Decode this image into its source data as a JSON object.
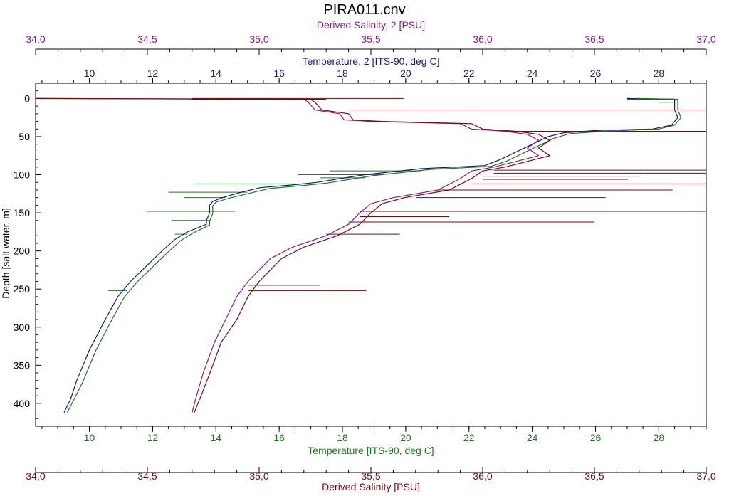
{
  "chart_data": {
    "type": "line",
    "title": "PIRA011.cnv",
    "colors": {
      "salinity2": "#8b1a8b",
      "temperature2": "#1a1a7a",
      "temperature": "#1a7a1a",
      "salinity": "#7a0a0a",
      "axis": "#000000"
    },
    "axes": {
      "top_salinity2": {
        "label": "Derived Salinity, 2 [PSU]",
        "range": [
          34.0,
          37.0
        ],
        "ticks": [
          "34,0",
          "34,5",
          "35,0",
          "35,5",
          "36,0",
          "36,5",
          "37,0"
        ],
        "tick_values": [
          34.0,
          34.5,
          35.0,
          35.5,
          36.0,
          36.5,
          37.0
        ]
      },
      "top_temperature2": {
        "label": "Temperature, 2 [ITS-90, deg C]",
        "range": [
          8.3,
          29.5
        ],
        "ticks": [
          "10",
          "12",
          "14",
          "16",
          "18",
          "20",
          "22",
          "24",
          "26",
          "28"
        ],
        "tick_values": [
          10,
          12,
          14,
          16,
          18,
          20,
          22,
          24,
          26,
          28
        ]
      },
      "left_depth": {
        "label": "Depth [salt water, m]",
        "range": [
          -20,
          430
        ],
        "ticks": [
          "0",
          "50",
          "100",
          "150",
          "200",
          "250",
          "300",
          "350",
          "400"
        ],
        "tick_values": [
          0,
          50,
          100,
          150,
          200,
          250,
          300,
          350,
          400
        ]
      },
      "bottom_temperature": {
        "label": "Temperature [ITS-90, deg C]",
        "range": [
          8.3,
          29.5
        ],
        "ticks": [
          "10",
          "12",
          "14",
          "16",
          "18",
          "20",
          "22",
          "24",
          "26",
          "28"
        ],
        "tick_values": [
          10,
          12,
          14,
          16,
          18,
          20,
          22,
          24,
          26,
          28
        ]
      },
      "bottom_salinity": {
        "label": "Derived Salinity [PSU]",
        "range": [
          34.0,
          37.0
        ],
        "ticks": [
          "34,0",
          "34,5",
          "35,0",
          "35,5",
          "36,0",
          "36,5",
          "37,0"
        ],
        "tick_values": [
          34.0,
          34.5,
          35.0,
          35.5,
          36.0,
          36.5,
          37.0
        ]
      }
    },
    "series": [
      {
        "name": "Temperature, 2 [ITS-90, deg C]",
        "key": "temperature2",
        "axis": "temp",
        "points": [
          [
            27,
            0
          ],
          [
            28.5,
            1
          ],
          [
            28.5,
            5
          ],
          [
            28.5,
            15
          ],
          [
            28.6,
            25
          ],
          [
            28.4,
            35
          ],
          [
            27.8,
            40
          ],
          [
            26,
            42
          ],
          [
            25,
            45
          ],
          [
            24.5,
            50
          ],
          [
            24,
            60
          ],
          [
            23,
            80
          ],
          [
            22.5,
            88
          ],
          [
            20.5,
            92
          ],
          [
            18.7,
            100
          ],
          [
            17.2,
            110
          ],
          [
            16.5,
            113
          ],
          [
            15.4,
            117
          ],
          [
            14.8,
            123
          ],
          [
            14.2,
            130
          ],
          [
            13.9,
            135
          ],
          [
            13.8,
            140
          ],
          [
            13.8,
            150
          ],
          [
            13.7,
            160
          ],
          [
            13.7,
            165
          ],
          [
            13.1,
            175
          ],
          [
            12.7,
            185
          ],
          [
            12.3,
            200
          ],
          [
            11.8,
            220
          ],
          [
            11.3,
            240
          ],
          [
            10.9,
            260
          ],
          [
            10.5,
            290
          ],
          [
            10.0,
            330
          ],
          [
            9.6,
            370
          ],
          [
            9.4,
            395
          ],
          [
            9.2,
            412
          ]
        ]
      },
      {
        "name": "Temperature [ITS-90, deg C]",
        "key": "temperature",
        "axis": "temp",
        "points": [
          [
            27.3,
            0
          ],
          [
            28.6,
            1
          ],
          [
            28.6,
            5
          ],
          [
            28.6,
            15
          ],
          [
            28.7,
            25
          ],
          [
            28.5,
            35
          ],
          [
            28.0,
            40
          ],
          [
            26.3,
            43
          ],
          [
            25.2,
            46
          ],
          [
            24.7,
            52
          ],
          [
            24.2,
            62
          ],
          [
            23.2,
            82
          ],
          [
            22.7,
            89
          ],
          [
            20.8,
            93
          ],
          [
            19.0,
            101
          ],
          [
            17.5,
            111
          ],
          [
            16.8,
            114
          ],
          [
            15.7,
            118
          ],
          [
            15.1,
            124
          ],
          [
            14.4,
            131
          ],
          [
            14.0,
            136
          ],
          [
            13.9,
            141
          ],
          [
            13.9,
            151
          ],
          [
            13.8,
            161
          ],
          [
            13.8,
            166
          ],
          [
            13.3,
            176
          ],
          [
            12.9,
            186
          ],
          [
            12.5,
            201
          ],
          [
            12.0,
            221
          ],
          [
            11.5,
            241
          ],
          [
            11.1,
            261
          ],
          [
            10.7,
            291
          ],
          [
            10.2,
            331
          ],
          [
            9.8,
            371
          ],
          [
            9.5,
            396
          ],
          [
            9.3,
            412
          ]
        ]
      },
      {
        "name": "Derived Salinity, 2 [PSU]",
        "key": "salinity2",
        "axis": "sal",
        "points": [
          [
            34.0,
            0
          ],
          [
            35.2,
            1
          ],
          [
            35.22,
            5
          ],
          [
            35.25,
            15
          ],
          [
            35.36,
            20
          ],
          [
            35.38,
            28
          ],
          [
            35.5,
            30
          ],
          [
            35.9,
            33
          ],
          [
            35.95,
            40
          ],
          [
            36.1,
            43
          ],
          [
            36.2,
            47
          ],
          [
            36.25,
            55
          ],
          [
            36.2,
            65
          ],
          [
            36.25,
            75
          ],
          [
            36.05,
            90
          ],
          [
            35.95,
            95
          ],
          [
            35.9,
            105
          ],
          [
            35.8,
            120
          ],
          [
            35.6,
            130
          ],
          [
            35.5,
            138
          ],
          [
            35.45,
            150
          ],
          [
            35.4,
            165
          ],
          [
            35.3,
            180
          ],
          [
            35.15,
            195
          ],
          [
            35.05,
            210
          ],
          [
            34.95,
            240
          ],
          [
            34.9,
            260
          ],
          [
            34.85,
            290
          ],
          [
            34.8,
            320
          ],
          [
            34.75,
            360
          ],
          [
            34.72,
            390
          ],
          [
            34.7,
            412
          ]
        ]
      },
      {
        "name": "Derived Salinity [PSU]",
        "key": "salinity",
        "axis": "sal",
        "points": [
          [
            34.0,
            0
          ],
          [
            35.23,
            1
          ],
          [
            35.25,
            5
          ],
          [
            35.28,
            15
          ],
          [
            35.4,
            20
          ],
          [
            35.42,
            28
          ],
          [
            35.55,
            30
          ],
          [
            35.95,
            33
          ],
          [
            36.0,
            40
          ],
          [
            36.15,
            43
          ],
          [
            36.25,
            47
          ],
          [
            36.3,
            55
          ],
          [
            36.25,
            65
          ],
          [
            36.3,
            75
          ],
          [
            36.1,
            90
          ],
          [
            36.0,
            95
          ],
          [
            35.95,
            105
          ],
          [
            35.85,
            120
          ],
          [
            35.65,
            130
          ],
          [
            35.55,
            138
          ],
          [
            35.5,
            150
          ],
          [
            35.45,
            165
          ],
          [
            35.35,
            180
          ],
          [
            35.2,
            195
          ],
          [
            35.1,
            210
          ],
          [
            35.0,
            240
          ],
          [
            34.95,
            260
          ],
          [
            34.9,
            290
          ],
          [
            34.83,
            320
          ],
          [
            34.78,
            360
          ],
          [
            34.74,
            390
          ],
          [
            34.71,
            412
          ]
        ]
      }
    ],
    "spikes": [
      {
        "key": "salinity",
        "axis": "sal",
        "depth": 15,
        "from": 35.4,
        "to": 37.0
      },
      {
        "key": "salinity",
        "axis": "sal",
        "depth": 43,
        "from": 36.1,
        "to": 37.0
      },
      {
        "key": "salinity",
        "axis": "sal",
        "depth": 94,
        "from": 36.05,
        "to": 37.0
      },
      {
        "key": "salinity",
        "axis": "sal",
        "depth": 98,
        "from": 36.05,
        "to": 37.0
      },
      {
        "key": "salinity",
        "axis": "sal",
        "depth": 102,
        "from": 36.0,
        "to": 36.7
      },
      {
        "key": "salinity",
        "axis": "sal",
        "depth": 106,
        "from": 36.0,
        "to": 36.65
      },
      {
        "key": "salinity",
        "axis": "sal",
        "depth": 112,
        "from": 35.95,
        "to": 37.0
      },
      {
        "key": "salinity",
        "axis": "sal",
        "depth": 120,
        "from": 35.8,
        "to": 36.85
      },
      {
        "key": "salinity",
        "axis": "sal",
        "depth": 130,
        "from": 35.7,
        "to": 36.55
      },
      {
        "key": "salinity",
        "axis": "sal",
        "depth": 148,
        "from": 35.45,
        "to": 37.0
      },
      {
        "key": "salinity",
        "axis": "sal",
        "depth": 155,
        "from": 35.45,
        "to": 35.85
      },
      {
        "key": "salinity",
        "axis": "sal",
        "depth": 162,
        "from": 35.4,
        "to": 36.5
      },
      {
        "key": "salinity",
        "axis": "sal",
        "depth": 178,
        "from": 35.3,
        "to": 35.63
      },
      {
        "key": "salinity",
        "axis": "sal",
        "depth": 245,
        "from": 34.95,
        "to": 35.27
      },
      {
        "key": "salinity",
        "axis": "sal",
        "depth": 252,
        "from": 34.95,
        "to": 35.48
      },
      {
        "key": "salinity",
        "axis": "sal",
        "depth": 0,
        "from": 34.7,
        "to": 35.65
      },
      {
        "key": "salinity",
        "axis": "sal",
        "depth": 1,
        "from": 34.7,
        "to": 35.3
      },
      {
        "key": "temperature",
        "axis": "temp",
        "depth": 95,
        "from": 17.6,
        "to": 20.5
      },
      {
        "key": "temperature",
        "axis": "temp",
        "depth": 100,
        "from": 16.6,
        "to": 19.2
      },
      {
        "key": "temperature",
        "axis": "temp",
        "depth": 104,
        "from": 17.3,
        "to": 18.7
      },
      {
        "key": "temperature",
        "axis": "temp",
        "depth": 112,
        "from": 13.3,
        "to": 16.5
      },
      {
        "key": "temperature",
        "axis": "temp",
        "depth": 123,
        "from": 12.5,
        "to": 15.0
      },
      {
        "key": "temperature",
        "axis": "temp",
        "depth": 130,
        "from": 13.0,
        "to": 14.3
      },
      {
        "key": "temperature",
        "axis": "temp",
        "depth": 148,
        "from": 11.8,
        "to": 14.6
      },
      {
        "key": "temperature",
        "axis": "temp",
        "depth": 160,
        "from": 12.6,
        "to": 13.8
      },
      {
        "key": "temperature",
        "axis": "temp",
        "depth": 178,
        "from": 12.7,
        "to": 13.1
      },
      {
        "key": "temperature",
        "axis": "temp",
        "depth": 252,
        "from": 10.6,
        "to": 11.2
      },
      {
        "key": "temperature",
        "axis": "temp",
        "depth": 1,
        "from": 27.0,
        "to": 28.5
      },
      {
        "key": "temperature",
        "axis": "temp",
        "depth": 5,
        "from": 28.0,
        "to": 28.5
      }
    ]
  }
}
